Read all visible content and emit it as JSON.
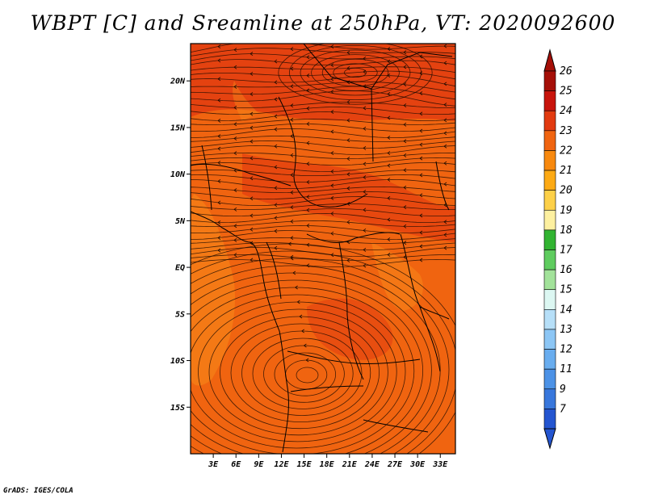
{
  "title": "WBPT [C] and Sreamline at 250hPa, VT: 2020092600",
  "footer": "GrADS: IGES/COLA",
  "map": {
    "lon_range": [
      0,
      35
    ],
    "lat_range": [
      -20,
      24
    ],
    "lat_ticks": [
      {
        "value": 20,
        "label": "20N"
      },
      {
        "value": 15,
        "label": "15N"
      },
      {
        "value": 10,
        "label": "10N"
      },
      {
        "value": 5,
        "label": "5N"
      },
      {
        "value": 0,
        "label": "EQ"
      },
      {
        "value": -5,
        "label": "5S"
      },
      {
        "value": -10,
        "label": "10S"
      },
      {
        "value": -15,
        "label": "15S"
      }
    ],
    "lon_ticks": [
      {
        "value": 3,
        "label": "3E"
      },
      {
        "value": 6,
        "label": "6E"
      },
      {
        "value": 9,
        "label": "9E"
      },
      {
        "value": 12,
        "label": "12E"
      },
      {
        "value": 15,
        "label": "15E"
      },
      {
        "value": 18,
        "label": "18E"
      },
      {
        "value": 21,
        "label": "21E"
      },
      {
        "value": 24,
        "label": "24E"
      },
      {
        "value": 27,
        "label": "27E"
      },
      {
        "value": 30,
        "label": "30E"
      },
      {
        "value": 33,
        "label": "33E"
      }
    ],
    "colors": {
      "dominant": "#f06410",
      "deep": "#e23c10",
      "light": "#f78a1a"
    }
  },
  "colorbar": {
    "levels": [
      "26",
      "25",
      "24",
      "23",
      "22",
      "21",
      "20",
      "19",
      "18",
      "17",
      "16",
      "15",
      "14",
      "13",
      "12",
      "11",
      "9",
      "7"
    ],
    "colors": [
      "#a50f08",
      "#c8140c",
      "#e23a10",
      "#f06410",
      "#f8890e",
      "#fdaa14",
      "#fdd048",
      "#fdf0a0",
      "#32b432",
      "#5fcc5f",
      "#a2e29a",
      "#dcf7f2",
      "#b6dff8",
      "#8cc6f5",
      "#69adef",
      "#4c92e6",
      "#3877dc",
      "#2455d0"
    ]
  }
}
